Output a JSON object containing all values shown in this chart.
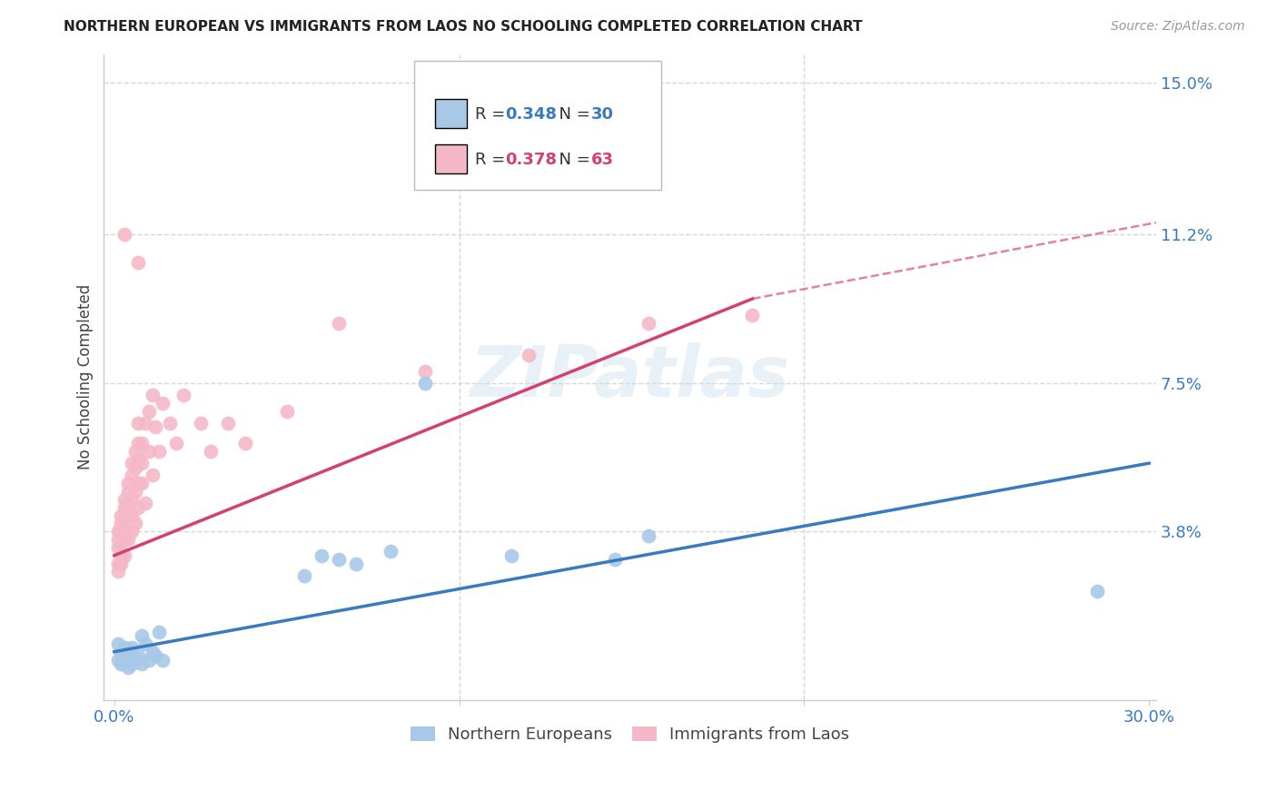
{
  "title": "NORTHERN EUROPEAN VS IMMIGRANTS FROM LAOS NO SCHOOLING COMPLETED CORRELATION CHART",
  "source": "Source: ZipAtlas.com",
  "ylabel": "No Schooling Completed",
  "xlim": [
    -0.003,
    0.302
  ],
  "ylim": [
    -0.004,
    0.157
  ],
  "right_yticks": [
    0.038,
    0.075,
    0.112,
    0.15
  ],
  "right_yticklabels": [
    "3.8%",
    "7.5%",
    "11.2%",
    "15.0%"
  ],
  "blue_color": "#a8c8e8",
  "pink_color": "#f4b8c8",
  "blue_line_color": "#3a7abf",
  "pink_line_color": "#d44070",
  "watermark": "ZIPatlas",
  "blue_R": 0.348,
  "blue_N": 30,
  "pink_R": 0.378,
  "pink_N": 63,
  "blue_line_x0": 0.0,
  "blue_line_y0": 0.008,
  "blue_line_x1": 0.3,
  "blue_line_y1": 0.055,
  "pink_line_x0": 0.0,
  "pink_line_y0": 0.032,
  "pink_line_solid_x1": 0.185,
  "pink_line_solid_y1": 0.096,
  "pink_line_dash_x1": 0.302,
  "pink_line_dash_y1": 0.115,
  "blue_scatter_x": [
    0.001,
    0.001,
    0.002,
    0.002,
    0.003,
    0.003,
    0.004,
    0.004,
    0.005,
    0.005,
    0.006,
    0.007,
    0.008,
    0.008,
    0.009,
    0.01,
    0.011,
    0.012,
    0.013,
    0.014,
    0.055,
    0.06,
    0.065,
    0.07,
    0.08,
    0.09,
    0.115,
    0.145,
    0.155,
    0.285
  ],
  "blue_scatter_y": [
    0.006,
    0.01,
    0.005,
    0.008,
    0.007,
    0.009,
    0.004,
    0.008,
    0.005,
    0.009,
    0.006,
    0.007,
    0.012,
    0.005,
    0.01,
    0.006,
    0.008,
    0.007,
    0.013,
    0.006,
    0.027,
    0.032,
    0.031,
    0.03,
    0.033,
    0.075,
    0.032,
    0.031,
    0.037,
    0.023
  ],
  "pink_scatter_x": [
    0.001,
    0.001,
    0.001,
    0.001,
    0.001,
    0.002,
    0.002,
    0.002,
    0.002,
    0.002,
    0.002,
    0.003,
    0.003,
    0.003,
    0.003,
    0.003,
    0.003,
    0.004,
    0.004,
    0.004,
    0.004,
    0.004,
    0.005,
    0.005,
    0.005,
    0.005,
    0.005,
    0.006,
    0.006,
    0.006,
    0.006,
    0.007,
    0.007,
    0.007,
    0.007,
    0.007,
    0.008,
    0.008,
    0.008,
    0.009,
    0.009,
    0.01,
    0.01,
    0.011,
    0.011,
    0.012,
    0.013,
    0.014,
    0.016,
    0.018,
    0.02,
    0.025,
    0.028,
    0.033,
    0.038,
    0.05,
    0.065,
    0.09,
    0.12,
    0.155,
    0.185,
    0.003,
    0.007
  ],
  "pink_scatter_y": [
    0.034,
    0.03,
    0.038,
    0.036,
    0.028,
    0.035,
    0.032,
    0.042,
    0.038,
    0.04,
    0.03,
    0.044,
    0.038,
    0.032,
    0.046,
    0.036,
    0.04,
    0.05,
    0.042,
    0.036,
    0.048,
    0.044,
    0.052,
    0.046,
    0.038,
    0.055,
    0.042,
    0.058,
    0.048,
    0.04,
    0.054,
    0.06,
    0.05,
    0.056,
    0.044,
    0.065,
    0.06,
    0.055,
    0.05,
    0.065,
    0.045,
    0.068,
    0.058,
    0.072,
    0.052,
    0.064,
    0.058,
    0.07,
    0.065,
    0.06,
    0.072,
    0.065,
    0.058,
    0.065,
    0.06,
    0.068,
    0.09,
    0.078,
    0.082,
    0.09,
    0.092,
    0.112,
    0.105
  ],
  "grid_color": "#cccccc",
  "background_color": "#ffffff"
}
